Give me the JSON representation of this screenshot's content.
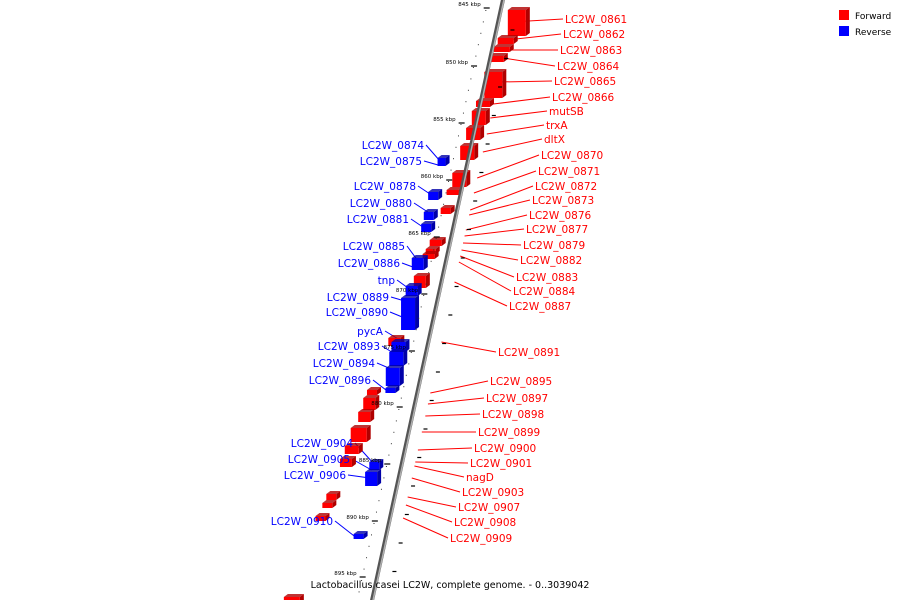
{
  "caption": "Lactobacillus casei LC2W, complete genome. - 0..3039042",
  "legend": [
    {
      "label": "Forward",
      "color": "#ff0000"
    },
    {
      "label": "Reverse",
      "color": "#0000ff"
    }
  ],
  "colors": {
    "forward": "#ff0000",
    "reverse": "#0000ff",
    "backbone": "#808080"
  },
  "ticks": [
    "845 kbp",
    "850 kbp",
    "855 kbp",
    "860 kbp",
    "865 kbp",
    "870 kbp",
    "875 kbp",
    "880 kbp",
    "885 kbp",
    "890 kbp",
    "895 kbp"
  ],
  "forward_genes": [
    "LC2W_0861",
    "LC2W_0862",
    "LC2W_0863",
    "LC2W_0864",
    "LC2W_0865",
    "LC2W_0866",
    "mutSB",
    "trxA",
    "dltX",
    "LC2W_0870",
    "LC2W_0871",
    "LC2W_0872",
    "LC2W_0873",
    "LC2W_0876",
    "LC2W_0877",
    "LC2W_0879",
    "LC2W_0882",
    "LC2W_0883",
    "LC2W_0884",
    "LC2W_0887",
    "LC2W_0891",
    "LC2W_0895",
    "LC2W_0897",
    "LC2W_0898",
    "LC2W_0899",
    "LC2W_0900",
    "LC2W_0901",
    "nagD",
    "LC2W_0903",
    "LC2W_0907",
    "LC2W_0908",
    "LC2W_0909"
  ],
  "reverse_genes": [
    "LC2W_0874",
    "LC2W_0875",
    "LC2W_0878",
    "LC2W_0880",
    "LC2W_0881",
    "LC2W_0885",
    "LC2W_0886",
    "tnp",
    "LC2W_0889",
    "LC2W_0890",
    "pycA",
    "LC2W_0893",
    "LC2W_0894",
    "LC2W_0896",
    "LC2W_0904",
    "LC2W_0905",
    "LC2W_0906",
    "LC2W_0910"
  ]
}
